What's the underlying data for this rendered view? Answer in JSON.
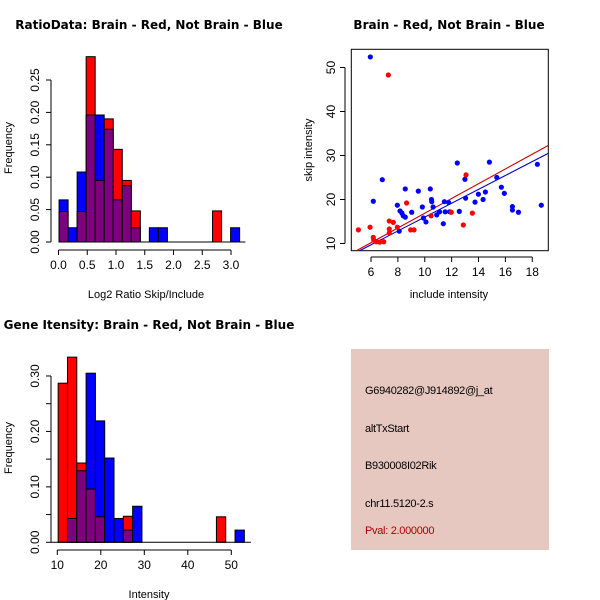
{
  "colors": {
    "brain": "#ff0000",
    "not_brain": "#0000ff",
    "overlap": "#7f007f",
    "info_panel_bg": "#e6c8c1",
    "pval_text": "#b00000",
    "regression_brain": "#cc0000",
    "regression_not_brain": "#0000cc"
  },
  "chart_data": [
    {
      "id": "ratio-histogram",
      "type": "bar",
      "title": "RatioData: Brain - Red, Not Brain - Blue",
      "xlabel": "Log2 Ratio Skip/Include",
      "ylabel": "Frequency",
      "xlim": [
        0.0,
        3.25
      ],
      "ylim": [
        0.0,
        0.29
      ],
      "xticks": [
        "0.0",
        "0.5",
        "1.0",
        "1.5",
        "2.0",
        "2.5",
        "3.0"
      ],
      "xtick_values": [
        0.0,
        0.5,
        1.0,
        1.5,
        2.0,
        2.5,
        3.0
      ],
      "yticks": [
        "0.00",
        "0.05",
        "0.10",
        "0.15",
        "0.20",
        "0.25"
      ],
      "ytick_values": [
        0.0,
        0.05,
        0.1,
        0.15,
        0.2,
        0.25
      ],
      "grid": false,
      "bin_start": 0.01,
      "bin_width": 0.157,
      "series": [
        {
          "name": "Brain",
          "color": "red",
          "values": [
            0.047,
            0,
            0.047,
            0.286,
            0.095,
            0.19,
            0.143,
            0.095,
            0.048,
            0,
            0,
            0,
            0,
            0,
            0,
            0,
            0,
            0.048,
            0,
            0
          ]
        },
        {
          "name": "Not Brain",
          "color": "blue",
          "values": [
            0.065,
            0.022,
            0.108,
            0.196,
            0.196,
            0.174,
            0.065,
            0.087,
            0.022,
            0,
            0.022,
            0.022,
            0,
            0,
            0,
            0,
            0,
            0,
            0,
            0.022
          ]
        }
      ]
    },
    {
      "id": "intensity-scatter",
      "type": "scatter",
      "title": "Brain - Red, Not Brain - Blue",
      "xlabel": "include intensity",
      "ylabel": "skip intensity",
      "xlim": [
        4.6,
        19.3
      ],
      "ylim": [
        8.3,
        54.0
      ],
      "xticks": [
        "6",
        "8",
        "10",
        "12",
        "14",
        "16",
        "18"
      ],
      "xtick_values": [
        6,
        8,
        10,
        12,
        14,
        16,
        18
      ],
      "yticks": [
        "10",
        "20",
        "30",
        "40",
        "50"
      ],
      "ytick_values": [
        10,
        20,
        30,
        40,
        50
      ],
      "grid": false,
      "series": [
        {
          "name": "Not Brain",
          "color": "blue",
          "points": [
            [
              5.95,
              52.4
            ],
            [
              6.17,
              19.6
            ],
            [
              6.84,
              24.5
            ],
            [
              7.96,
              18.7
            ],
            [
              8.1,
              12.8
            ],
            [
              8.16,
              17.4
            ],
            [
              8.3,
              16.9
            ],
            [
              8.4,
              16.3
            ],
            [
              8.55,
              16.0
            ],
            [
              8.55,
              22.4
            ],
            [
              9.03,
              17.1
            ],
            [
              9.52,
              21.9
            ],
            [
              9.82,
              18.3
            ],
            [
              9.9,
              15.8
            ],
            [
              10.09,
              14.9
            ],
            [
              10.41,
              22.4
            ],
            [
              10.5,
              20.0
            ],
            [
              10.52,
              19.5
            ],
            [
              10.62,
              18.3
            ],
            [
              10.89,
              16.5
            ],
            [
              11.1,
              17.2
            ],
            [
              11.38,
              14.5
            ],
            [
              11.46,
              19.5
            ],
            [
              11.52,
              17.2
            ],
            [
              11.85,
              17.2
            ],
            [
              11.78,
              19.3
            ],
            [
              12.42,
              28.3
            ],
            [
              12.57,
              17.3
            ],
            [
              12.99,
              24.6
            ],
            [
              13.04,
              20.3
            ],
            [
              13.74,
              19.4
            ],
            [
              13.99,
              21.2
            ],
            [
              14.34,
              20.0
            ],
            [
              14.51,
              21.7
            ],
            [
              14.81,
              28.5
            ],
            [
              15.36,
              25.0
            ],
            [
              15.7,
              22.8
            ],
            [
              15.92,
              21.4
            ],
            [
              16.52,
              18.4
            ],
            [
              16.52,
              17.6
            ],
            [
              16.97,
              17.1
            ],
            [
              18.38,
              28.0
            ],
            [
              18.67,
              18.7
            ]
          ],
          "regression": [
            [
              5.18,
              8.4
            ],
            [
              19.2,
              30.5
            ]
          ]
        },
        {
          "name": "Brain",
          "color": "red",
          "points": [
            [
              7.29,
              48.3
            ],
            [
              5.06,
              13.1
            ],
            [
              5.93,
              13.7
            ],
            [
              6.17,
              11.4
            ],
            [
              6.2,
              10.8
            ],
            [
              6.4,
              10.4
            ],
            [
              6.65,
              10.3
            ],
            [
              6.95,
              10.4
            ],
            [
              7.36,
              15.1
            ],
            [
              7.36,
              13.3
            ],
            [
              7.36,
              12.4
            ],
            [
              7.66,
              14.8
            ],
            [
              7.96,
              13.7
            ],
            [
              8.65,
              19.2
            ],
            [
              8.95,
              13.1
            ],
            [
              9.2,
              13.1
            ],
            [
              10.47,
              16.3
            ],
            [
              11.97,
              17.1
            ],
            [
              12.87,
              14.2
            ],
            [
              13.07,
              25.6
            ],
            [
              13.54,
              16.9
            ]
          ],
          "regression": [
            [
              4.94,
              8.4
            ],
            [
              19.2,
              32.3
            ]
          ]
        }
      ]
    },
    {
      "id": "gene-intensity-histogram",
      "type": "bar",
      "title": "Gene Itensity: Brain - Red, Not Brain - Blue",
      "xlabel": "Intensity",
      "ylabel": "Frequency",
      "xlim": [
        8.5,
        54.5
      ],
      "ylim": [
        0.0,
        0.345
      ],
      "xticks": [
        "10",
        "20",
        "30",
        "40",
        "50"
      ],
      "xtick_values": [
        10,
        20,
        30,
        40,
        50
      ],
      "yticks": [
        "0.00",
        "0.10",
        "0.20",
        "0.30"
      ],
      "ytick_values": [
        0.0,
        0.1,
        0.2,
        0.3
      ],
      "minor_ytick_values": [
        0.05,
        0.15,
        0.25
      ],
      "grid": false,
      "bin_start": 10.2,
      "bin_width": 2.14,
      "series": [
        {
          "name": "Brain",
          "color": "red",
          "values": [
            0.287,
            0.334,
            0.143,
            0.096,
            0.046,
            0,
            0,
            0.047,
            0,
            0,
            0,
            0,
            0,
            0,
            0,
            0,
            0,
            0.046,
            0,
            0
          ]
        },
        {
          "name": "Not Brain",
          "color": "blue",
          "values": [
            0,
            0.043,
            0.129,
            0.305,
            0.219,
            0.152,
            0.043,
            0.022,
            0.065,
            0,
            0,
            0,
            0,
            0,
            0,
            0,
            0,
            0,
            0,
            0.022
          ]
        }
      ]
    }
  ],
  "info_panel": {
    "probe_id": "G6940282@J914892@j_at",
    "event_type": "altTxStart",
    "gene": "B930008I02Rik",
    "location": "chr11.5120-2.s",
    "pval": "Pval: 2.000000"
  }
}
